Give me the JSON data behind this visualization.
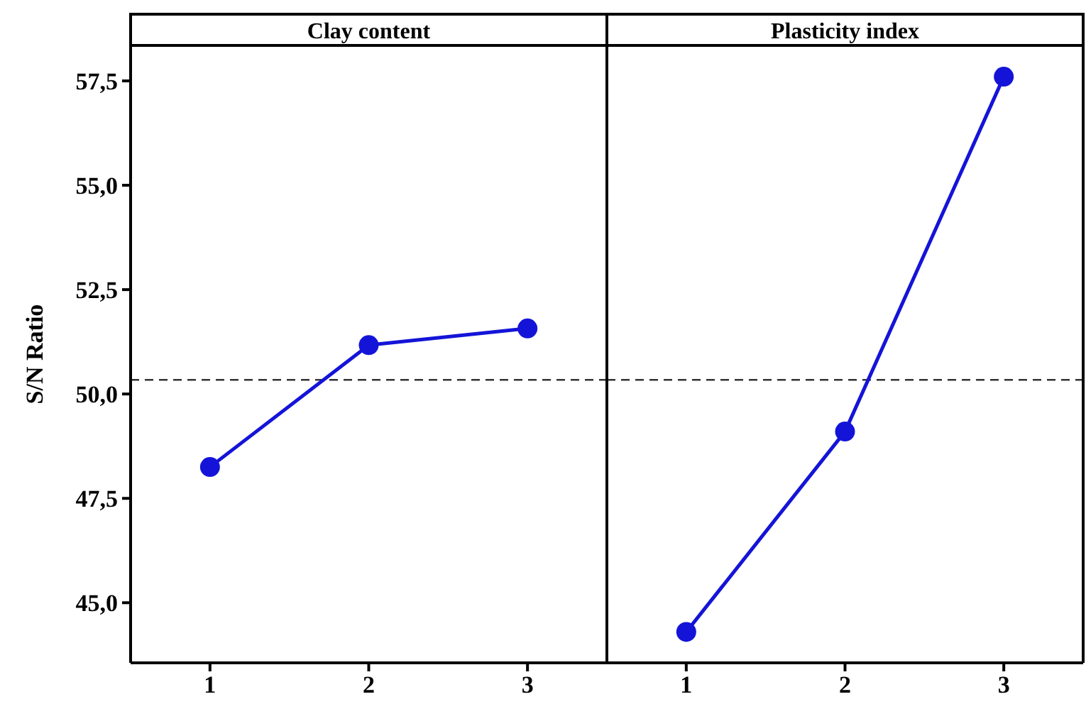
{
  "chart_data": [
    {
      "type": "line",
      "title": "Clay content",
      "ylabel": "S/N Ratio",
      "categories": [
        "1",
        "2",
        "3"
      ],
      "series": [
        {
          "color": "#1414d8",
          "values": [
            48.25,
            51.17,
            51.57
          ]
        }
      ],
      "ylim": [
        43.56,
        58.35
      ],
      "yticks": [
        {
          "value": 45,
          "label": "45,0"
        },
        {
          "value": 47.5,
          "label": "47,5"
        },
        {
          "value": 50,
          "label": "50,0"
        },
        {
          "value": 52.5,
          "label": "52,5"
        },
        {
          "value": 55,
          "label": "55,0"
        },
        {
          "value": 57.5,
          "label": "57,5"
        }
      ],
      "ref_lines": [
        {
          "axis": "y",
          "value": 50.34,
          "line_style": "dashed",
          "color": "#333333"
        }
      ],
      "marker": "circle",
      "line_style": "solid",
      "grid": false
    },
    {
      "type": "line",
      "title": "Plasticity index",
      "categories": [
        "1",
        "2",
        "3"
      ],
      "series": [
        {
          "color": "#1414d8",
          "values": [
            44.3,
            49.1,
            57.6
          ]
        }
      ],
      "ylim": [
        43.56,
        58.35
      ],
      "tick_labels": "x",
      "ref_lines": [
        {
          "axis": "y",
          "value": 50.34,
          "line_style": "dashed",
          "color": "#333333"
        }
      ],
      "marker": "circle",
      "line_style": "solid",
      "grid": false
    }
  ]
}
